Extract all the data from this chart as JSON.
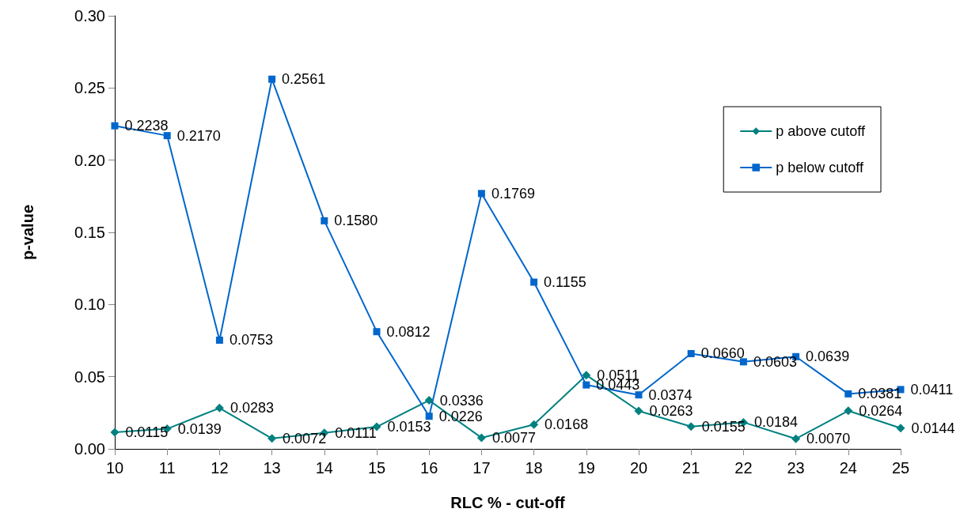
{
  "chart_data": {
    "type": "line",
    "xlabel": "RLC % - cut-off",
    "ylabel": "p-value",
    "categories": [
      "10",
      "11",
      "12",
      "13",
      "14",
      "15",
      "16",
      "17",
      "18",
      "19",
      "20",
      "21",
      "22",
      "23",
      "24",
      "25"
    ],
    "series": [
      {
        "name": "p above cutoff",
        "color": "#008080",
        "marker": "diamond",
        "values": [
          0.0115,
          0.0139,
          0.0283,
          0.0072,
          0.0111,
          0.0153,
          0.0336,
          0.0077,
          0.0168,
          0.0511,
          0.0263,
          0.0155,
          0.0184,
          0.007,
          0.0264,
          0.0144
        ],
        "value_labels": [
          "0.0115",
          "0.0139",
          "0.0283",
          "0.0072",
          "0.0111",
          "0.0153",
          "0.0336",
          "0.0077",
          "0.0168",
          "0.0511",
          "0.0263",
          "0.0155",
          "0.0184",
          "0.0070",
          "0.0264",
          "0.0144"
        ]
      },
      {
        "name": "p below cutoff",
        "color": "#0066cc",
        "marker": "square",
        "values": [
          0.2238,
          0.217,
          0.0753,
          0.2561,
          0.158,
          0.0812,
          0.0226,
          0.1769,
          0.1155,
          0.0443,
          0.0374,
          0.066,
          0.0603,
          0.0639,
          0.0381,
          0.0411
        ],
        "value_labels": [
          "0.2238",
          "0.2170",
          "0.0753",
          "0.2561",
          "0.1580",
          "0.0812",
          "0.0226",
          "0.1769",
          "0.1155",
          "0.0443",
          "0.0374",
          "0.0660",
          "0.0603",
          "0.0639",
          "0.0381",
          "0.0411"
        ]
      }
    ],
    "ylim": [
      0,
      0.3
    ],
    "yticks": [
      {
        "value": 0,
        "label": "0.00"
      },
      0.05,
      {
        "value": 0.1,
        "label": "0.10"
      },
      0.15,
      {
        "value": 0.2,
        "label": "0.20"
      },
      0.25,
      {
        "value": 0.3,
        "label": "0.30"
      }
    ],
    "grid": false,
    "legend": "top right",
    "line_style": "solid"
  }
}
